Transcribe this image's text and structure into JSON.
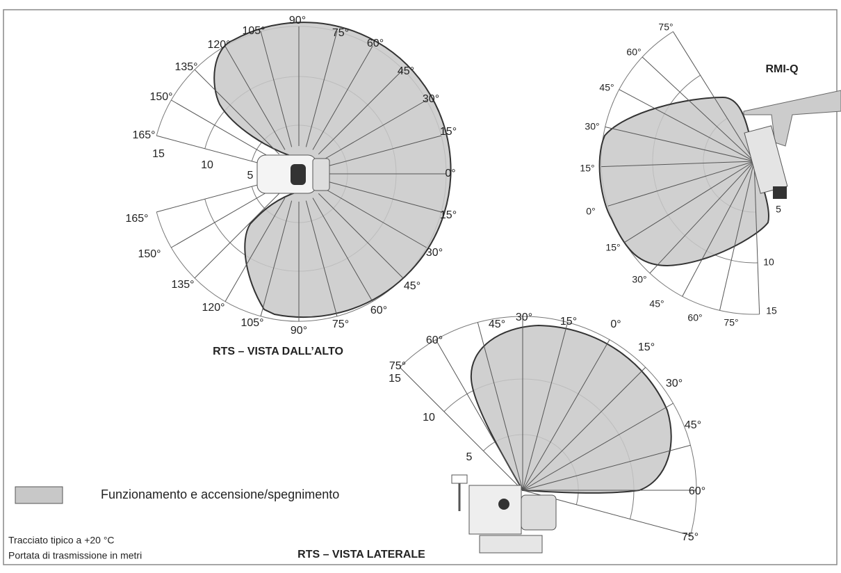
{
  "top_view": {
    "title": "RTS – VISTA DALL’ALTO",
    "angle_labels": [
      "90°",
      "105°",
      "75°",
      "120°",
      "60°",
      "135°",
      "45°",
      "150°",
      "30°",
      "165°",
      "15°",
      "0°",
      "15°",
      "165°",
      "30°",
      "150°",
      "45°",
      "135°",
      "60°",
      "120°",
      "75°",
      "105°",
      "90°"
    ],
    "range_labels": [
      "15",
      "10",
      "5"
    ]
  },
  "rmi_view": {
    "title": "RMI-Q",
    "angle_labels": [
      "75°",
      "60°",
      "45°",
      "30°",
      "15°",
      "0°",
      "15°",
      "30°",
      "45°",
      "60°",
      "75°"
    ],
    "range_labels": [
      "5",
      "10",
      "15"
    ]
  },
  "side_view": {
    "title": "RTS – VISTA LATERALE",
    "angle_labels": [
      "75°",
      "60°",
      "45°",
      "30°",
      "15°",
      "0°",
      "15°",
      "30°",
      "45°",
      "60°",
      "75°"
    ],
    "range_labels": [
      "15",
      "10",
      "5"
    ]
  },
  "legend": {
    "label": "Funzionamento e accensione/spegnimento"
  },
  "notes": [
    "Tracciato tipico a +20 °C",
    "Portata di trasmissione in metri"
  ]
}
